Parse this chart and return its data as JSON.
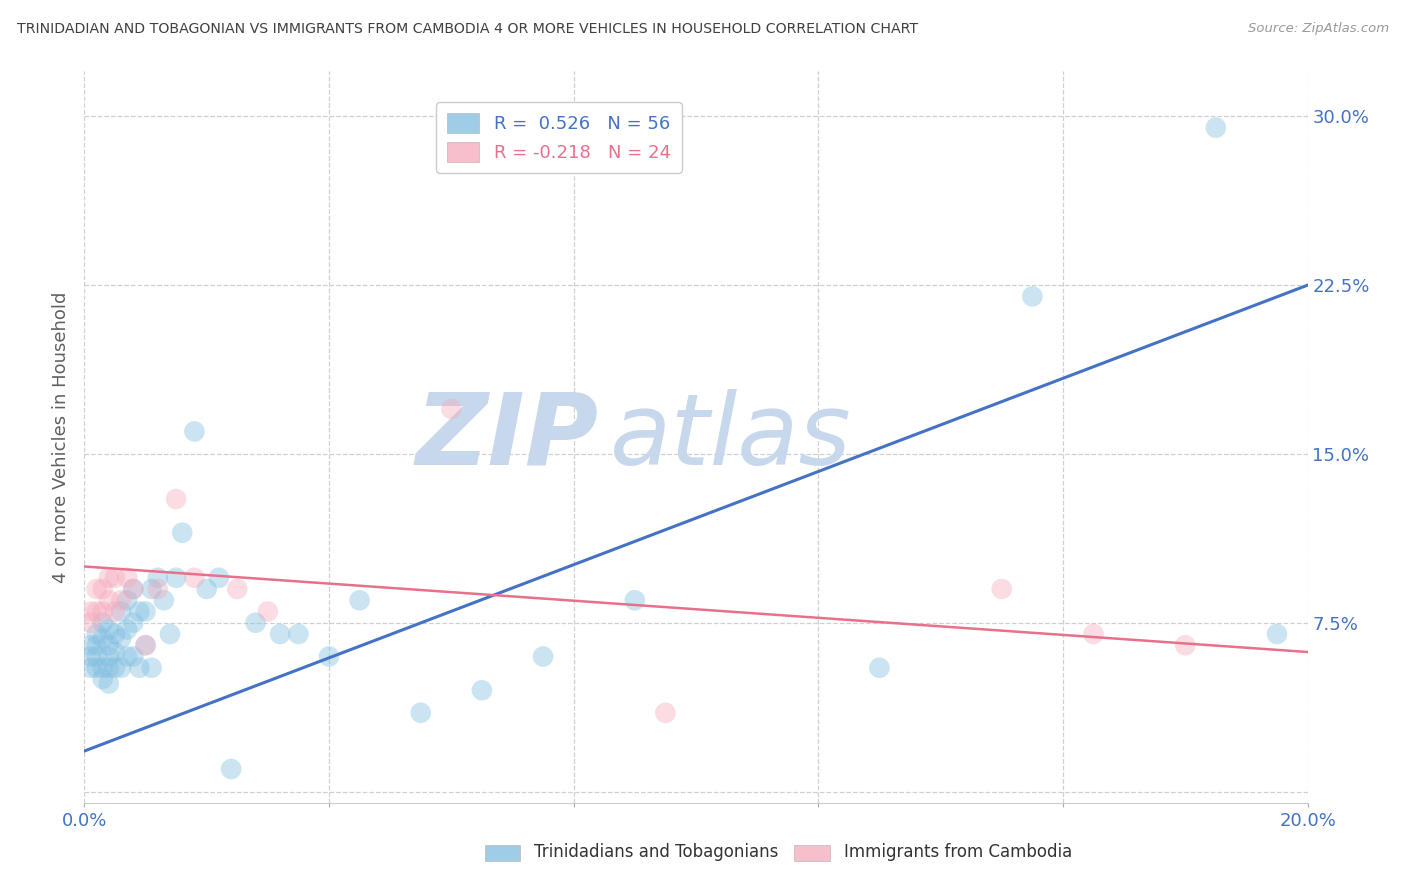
{
  "title": "TRINIDADIAN AND TOBAGONIAN VS IMMIGRANTS FROM CAMBODIA 4 OR MORE VEHICLES IN HOUSEHOLD CORRELATION CHART",
  "source": "Source: ZipAtlas.com",
  "ylabel": "4 or more Vehicles in Household",
  "xlim": [
    0.0,
    0.2
  ],
  "ylim": [
    -0.005,
    0.32
  ],
  "xticks": [
    0.0,
    0.04,
    0.08,
    0.12,
    0.16,
    0.2
  ],
  "yticks": [
    0.0,
    0.075,
    0.15,
    0.225,
    0.3
  ],
  "ytick_labels": [
    "",
    "7.5%",
    "15.0%",
    "22.5%",
    "30.0%"
  ],
  "xtick_labels": [
    "0.0%",
    "",
    "",
    "",
    "",
    "20.0%"
  ],
  "watermark1": "ZIP",
  "watermark2": "atlas",
  "legend_label1": "R =  0.526   N = 56",
  "legend_label2": "R = -0.218   N = 24",
  "blue_scatter_x": [
    0.001,
    0.001,
    0.001,
    0.002,
    0.002,
    0.002,
    0.002,
    0.003,
    0.003,
    0.003,
    0.003,
    0.004,
    0.004,
    0.004,
    0.004,
    0.004,
    0.005,
    0.005,
    0.005,
    0.006,
    0.006,
    0.006,
    0.007,
    0.007,
    0.007,
    0.008,
    0.008,
    0.008,
    0.009,
    0.009,
    0.01,
    0.01,
    0.011,
    0.011,
    0.012,
    0.013,
    0.014,
    0.015,
    0.016,
    0.018,
    0.02,
    0.022,
    0.024,
    0.028,
    0.032,
    0.035,
    0.04,
    0.045,
    0.055,
    0.065,
    0.075,
    0.09,
    0.13,
    0.155,
    0.185,
    0.195
  ],
  "blue_scatter_y": [
    0.065,
    0.06,
    0.055,
    0.07,
    0.065,
    0.06,
    0.055,
    0.075,
    0.068,
    0.055,
    0.05,
    0.072,
    0.065,
    0.06,
    0.055,
    0.048,
    0.07,
    0.062,
    0.055,
    0.08,
    0.068,
    0.055,
    0.085,
    0.072,
    0.06,
    0.09,
    0.075,
    0.06,
    0.08,
    0.055,
    0.08,
    0.065,
    0.09,
    0.055,
    0.095,
    0.085,
    0.07,
    0.095,
    0.115,
    0.16,
    0.09,
    0.095,
    0.01,
    0.075,
    0.07,
    0.07,
    0.06,
    0.085,
    0.035,
    0.045,
    0.06,
    0.085,
    0.055,
    0.22,
    0.295,
    0.07
  ],
  "pink_scatter_x": [
    0.001,
    0.001,
    0.002,
    0.002,
    0.003,
    0.003,
    0.004,
    0.004,
    0.005,
    0.005,
    0.006,
    0.007,
    0.008,
    0.01,
    0.012,
    0.015,
    0.018,
    0.025,
    0.03,
    0.06,
    0.095,
    0.15,
    0.165,
    0.18
  ],
  "pink_scatter_y": [
    0.08,
    0.075,
    0.09,
    0.08,
    0.09,
    0.08,
    0.095,
    0.085,
    0.095,
    0.08,
    0.085,
    0.095,
    0.09,
    0.065,
    0.09,
    0.13,
    0.095,
    0.09,
    0.08,
    0.17,
    0.035,
    0.09,
    0.07,
    0.065
  ],
  "blue_line_x": [
    0.0,
    0.2
  ],
  "blue_line_y": [
    0.018,
    0.225
  ],
  "pink_line_x": [
    0.0,
    0.2
  ],
  "pink_line_y": [
    0.1,
    0.062
  ],
  "scatter_size": 220,
  "scatter_alpha": 0.4,
  "blue_color": "#7fbde0",
  "pink_color": "#f5a8bb",
  "blue_line_color": "#4472c4",
  "pink_line_color": "#e8708a",
  "grid_color": "#d0d0d0",
  "title_color": "#404040",
  "axis_label_color": "#4472c4",
  "ylabel_color": "#606060",
  "watermark_bold_color": "#c8d8ec",
  "watermark_light_color": "#c8d8ec",
  "background_color": "#ffffff",
  "bottom_legend_blue": "Trinidadians and Tobagonians",
  "bottom_legend_pink": "Immigrants from Cambodia"
}
